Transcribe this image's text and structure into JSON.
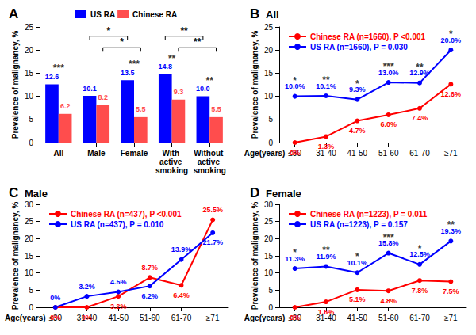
{
  "chart_data": [
    {
      "type": "bar",
      "panel": "A",
      "categories": [
        "All",
        "Male",
        "Female",
        "With active smoking",
        "Without active smoking"
      ],
      "series": [
        {
          "name": "US RA",
          "color": "#0000ff",
          "values": [
            12.6,
            10.1,
            13.5,
            14.8,
            10.0
          ],
          "value_labels": [
            "12.6",
            "10.1",
            "13.5",
            "14.8",
            "10.0"
          ]
        },
        {
          "name": "Chinese RA",
          "color": "#ff4d4d",
          "values": [
            6.2,
            8.2,
            5.5,
            9.3,
            5.5
          ],
          "value_labels": [
            "6.2",
            "8.2",
            "5.5",
            "9.3",
            "5.5"
          ]
        }
      ],
      "significance": [
        "***",
        null,
        "***",
        "**",
        "**"
      ],
      "comparisons": [
        {
          "from": "Male",
          "to": "Female",
          "series": "US RA",
          "label": "*"
        },
        {
          "from": "Male",
          "to": "Female",
          "series": "Chinese RA",
          "label": "*"
        },
        {
          "from": "With active smoking",
          "to": "Without active smoking",
          "series": "US RA",
          "label": "**"
        },
        {
          "from": "With active smoking",
          "to": "Without active smoking",
          "series": "Chinese RA",
          "label": "**"
        }
      ],
      "y_label": "Prevalence of malignancy, %",
      "ylim": [
        0,
        25
      ],
      "yticks": [
        0,
        5,
        10,
        15,
        20,
        25
      ],
      "grid": false,
      "legend": "top",
      "data_labels": true
    },
    {
      "type": "line",
      "panel": "B",
      "title": "All",
      "x_label": "Age(years)",
      "categories": [
        "≤30",
        "31-40",
        "41-50",
        "51-60",
        "61-70",
        "≥71"
      ],
      "series": [
        {
          "name": "Chinese RA (n=1660), P <0.001",
          "color": "#ff0000",
          "marker": "circle",
          "line_style": "solid",
          "values": [
            0,
            1.3,
            4.7,
            6.0,
            7.4,
            12.6
          ],
          "value_labels": [
            "0%",
            "1.3%",
            "4.7%",
            "6.0%",
            "7.4%",
            "12.6%"
          ]
        },
        {
          "name": "US RA (n=1660), P = 0.030",
          "color": "#0000ff",
          "marker": "circle",
          "line_style": "solid",
          "values": [
            10.0,
            10.1,
            9.3,
            13.0,
            12.9,
            20.0
          ],
          "value_labels": [
            "10.0%",
            "10.1%",
            "9.3%",
            "13.0%",
            "12.9%",
            "20.0%"
          ],
          "significance": [
            "*",
            "**",
            "*",
            "***",
            "**",
            "*"
          ]
        }
      ],
      "y_label": "Prevalence of malignancy, %",
      "ylim": [
        0,
        25
      ],
      "yticks": [
        0,
        5,
        10,
        15,
        20,
        25
      ],
      "grid": false,
      "legend": "upper left",
      "data_labels": true
    },
    {
      "type": "line",
      "panel": "C",
      "title": "Male",
      "x_label": "Age(years)",
      "categories": [
        "≤30",
        "31-40",
        "41-50",
        "51-60",
        "61-70",
        "≥71"
      ],
      "series": [
        {
          "name": "Chinese RA (n=437), P <0.001",
          "color": "#ff0000",
          "marker": "circle",
          "line_style": "solid",
          "values": [
            0,
            0,
            3.2,
            8.7,
            6.4,
            25.5
          ],
          "value_labels": [
            "0%",
            "0%",
            "3.2%",
            "8.7%",
            "6.4%",
            "25.5%"
          ]
        },
        {
          "name": "US RA (n=437), P = 0.010",
          "color": "#0000ff",
          "marker": "circle",
          "line_style": "solid",
          "values": [
            0,
            3.2,
            4.5,
            6.2,
            13.9,
            21.7
          ],
          "value_labels": [
            "0%",
            "3.2%",
            "4.5%",
            "6.2%",
            "13.9%",
            "21.7%"
          ]
        }
      ],
      "y_label": "Prevalence of malignancy, %",
      "ylim": [
        0,
        30
      ],
      "yticks": [
        0,
        5,
        10,
        15,
        20,
        25,
        30
      ],
      "grid": false,
      "legend": "upper left",
      "data_labels": true
    },
    {
      "type": "line",
      "panel": "D",
      "title": "Female",
      "x_label": "Age(years)",
      "categories": [
        "≤30",
        "31-40",
        "41-50",
        "51-60",
        "61-70",
        "≥71"
      ],
      "series": [
        {
          "name": "Chinese RA (n=1223), P = 0.011",
          "color": "#ff0000",
          "marker": "circle",
          "line_style": "solid",
          "values": [
            0,
            1.6,
            5.1,
            4.8,
            7.8,
            7.5
          ],
          "value_labels": [
            "0%",
            "1.6%",
            "5.1%",
            "4.8%",
            "7.8%",
            "7.5%"
          ]
        },
        {
          "name": "US RA (n=1223), P = 0.157",
          "color": "#0000ff",
          "marker": "circle",
          "line_style": "solid",
          "values": [
            11.3,
            11.9,
            10.1,
            15.8,
            12.5,
            19.3
          ],
          "value_labels": [
            "11.3%",
            "11.9%",
            "10.1%",
            "15.8%",
            "12.5%",
            "19.3%"
          ],
          "significance": [
            "*",
            "**",
            "*",
            "***",
            "*",
            "**"
          ]
        }
      ],
      "y_label": "Prevalence of malignancy, %",
      "ylim": [
        0,
        30
      ],
      "yticks": [
        0,
        5,
        10,
        15,
        20,
        25,
        30
      ],
      "grid": false,
      "legend": "upper left",
      "data_labels": true
    }
  ]
}
